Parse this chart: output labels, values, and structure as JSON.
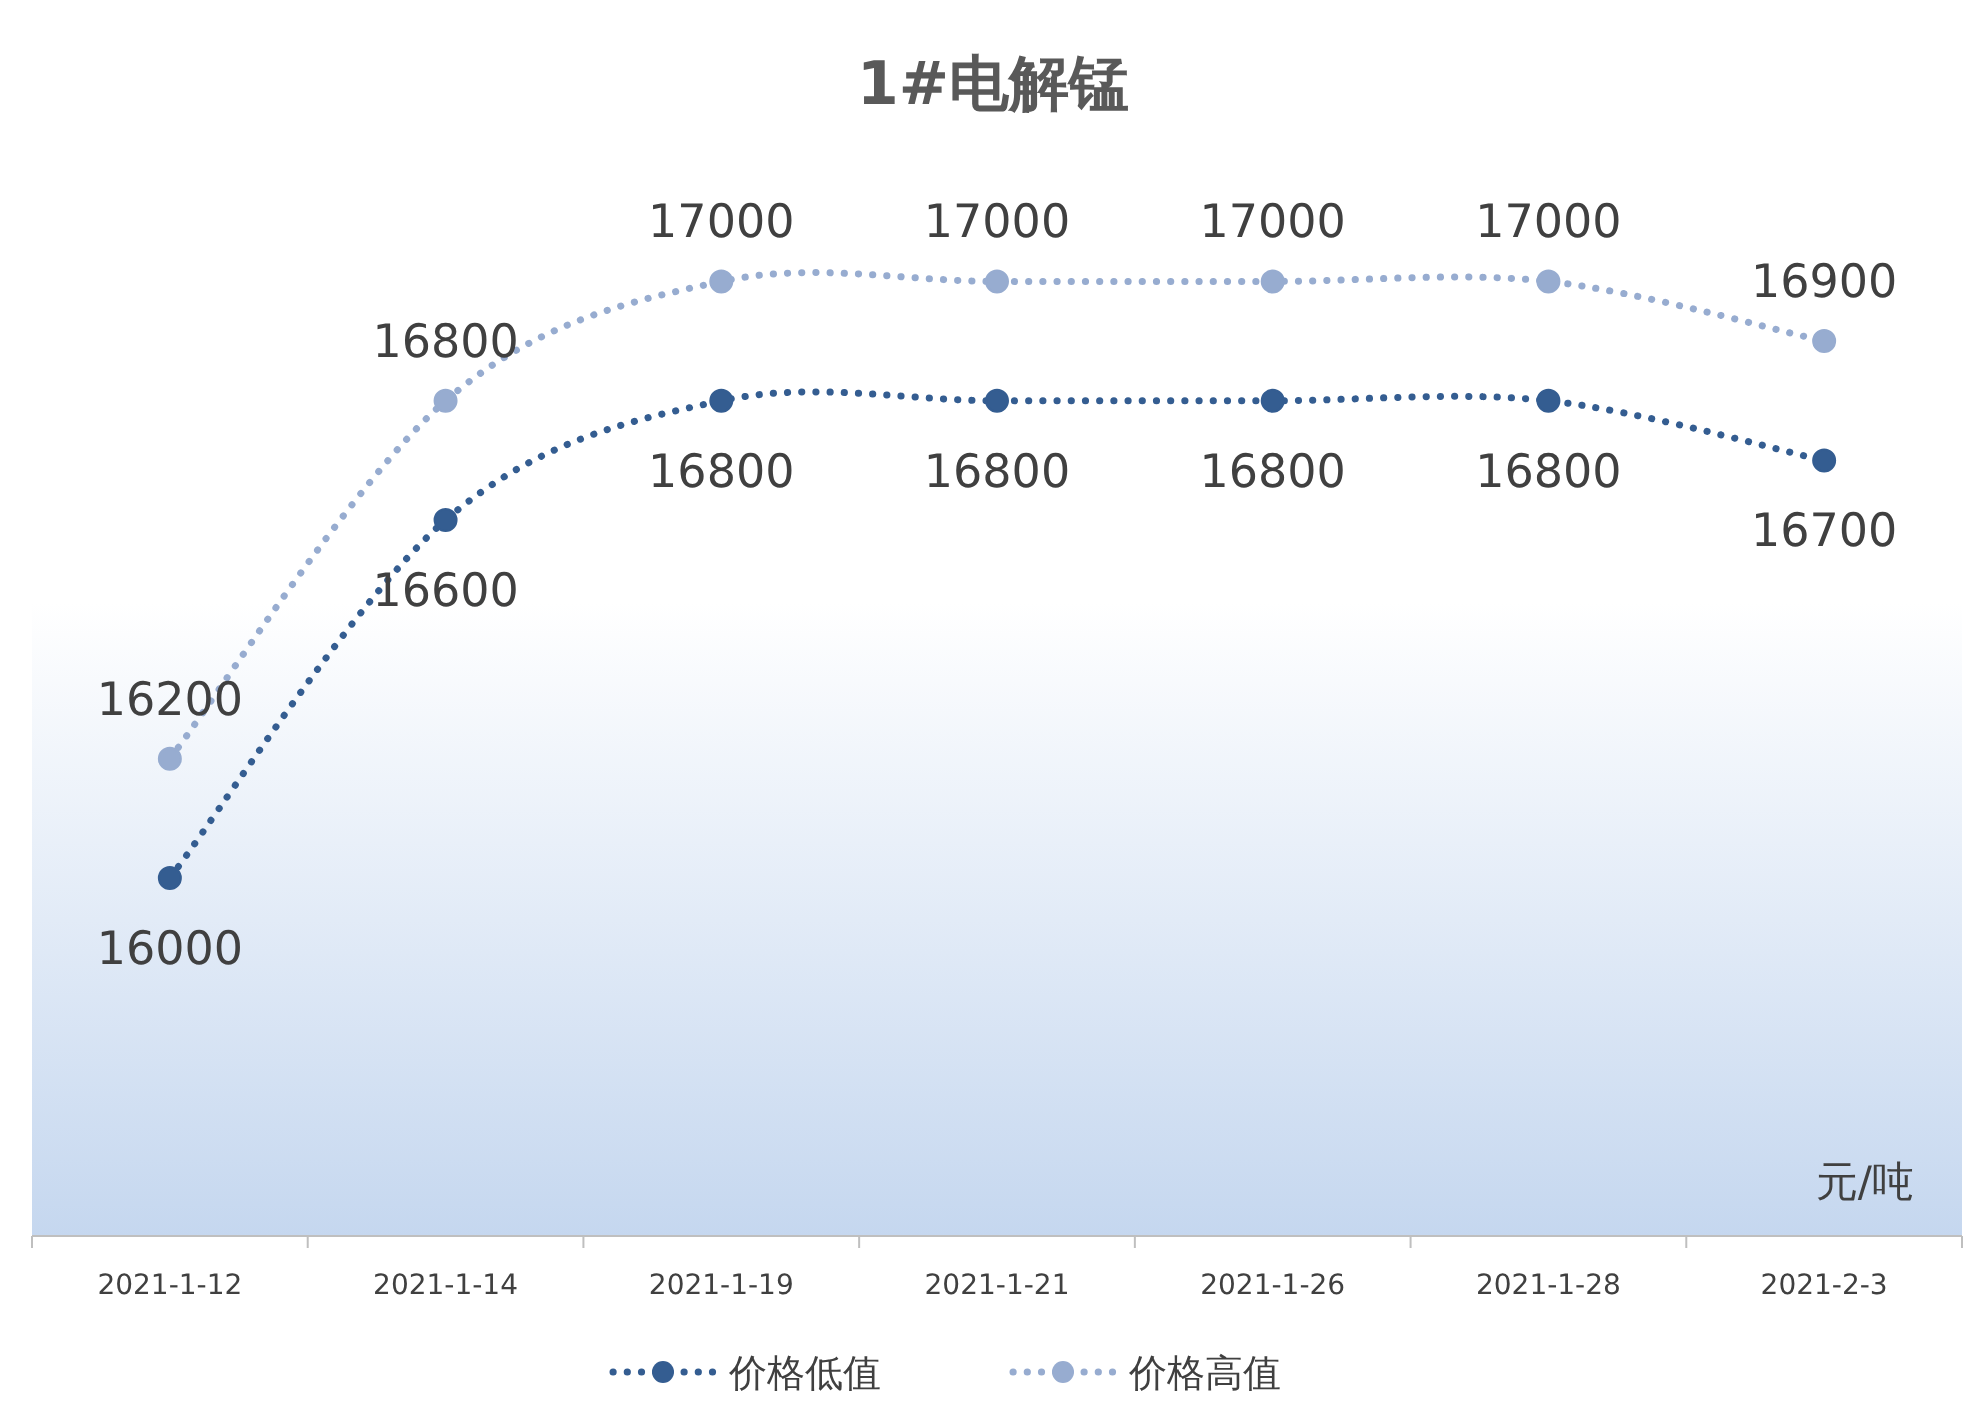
{
  "chart_data": {
    "type": "line",
    "title": "1#电解锰",
    "categories": [
      "2021-1-12",
      "2021-1-14",
      "2021-1-19",
      "2021-1-21",
      "2021-1-26",
      "2021-1-28",
      "2021-2-3"
    ],
    "series": [
      {
        "name": "价格低值",
        "color": "#345d91",
        "values": [
          16000,
          16600,
          16800,
          16800,
          16800,
          16800,
          16700
        ]
      },
      {
        "name": "价格高值",
        "color": "#97acd0",
        "values": [
          16200,
          16800,
          17000,
          17000,
          17000,
          17000,
          16900
        ]
      }
    ],
    "data_labels": true,
    "marker": "circle",
    "line_style": "dotted",
    "legend": "bottom",
    "annotations": [
      "元/吨"
    ]
  }
}
